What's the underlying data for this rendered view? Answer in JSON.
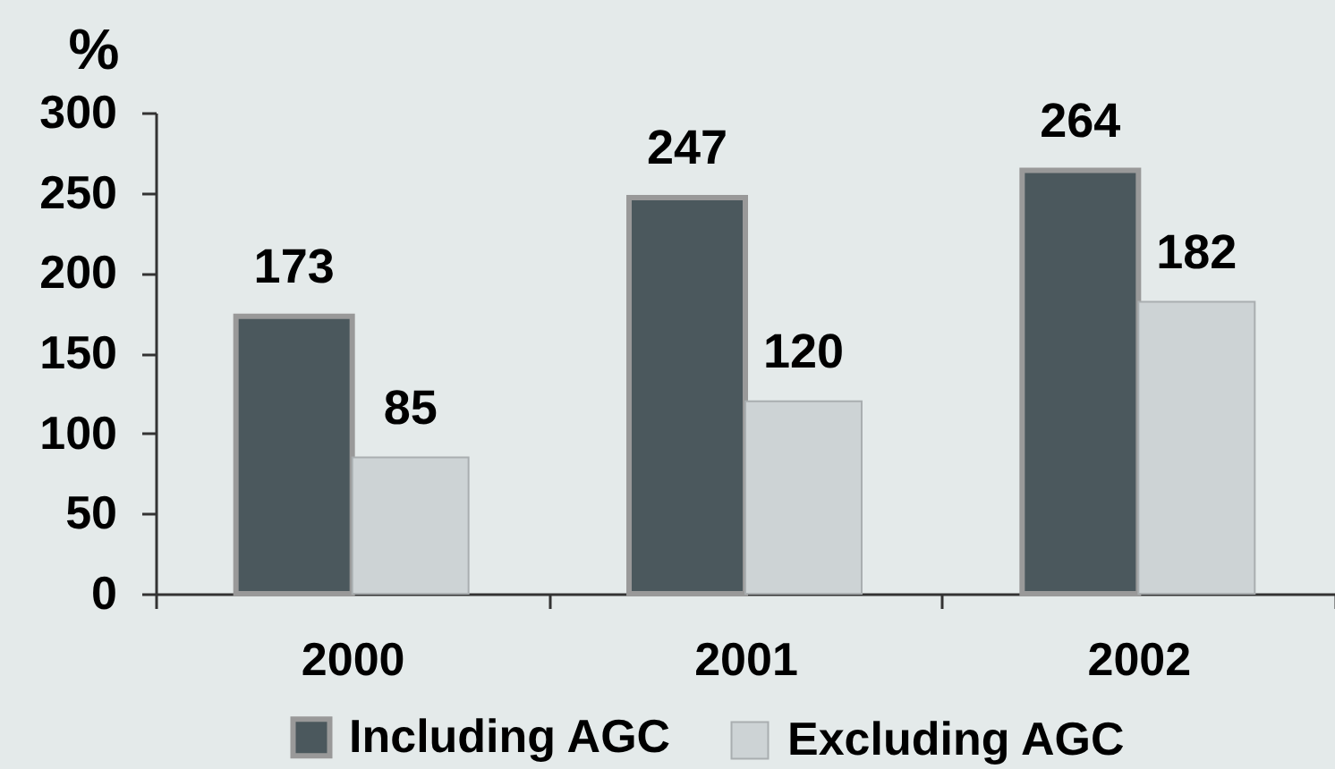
{
  "chart_data": {
    "type": "bar",
    "ylabel": "%",
    "categories": [
      "2000",
      "2001",
      "2002"
    ],
    "series": [
      {
        "name": "Including AGC",
        "color": "#4b585d",
        "values": [
          173,
          247,
          264
        ]
      },
      {
        "name": "Excluding AGC",
        "color": "#cdd3d5",
        "values": [
          85,
          120,
          182
        ]
      }
    ],
    "ylim": [
      0,
      300
    ],
    "yticks": [
      0,
      50,
      100,
      150,
      200,
      250,
      300
    ],
    "data_labels": true,
    "legend": "bottom",
    "grid": false
  }
}
